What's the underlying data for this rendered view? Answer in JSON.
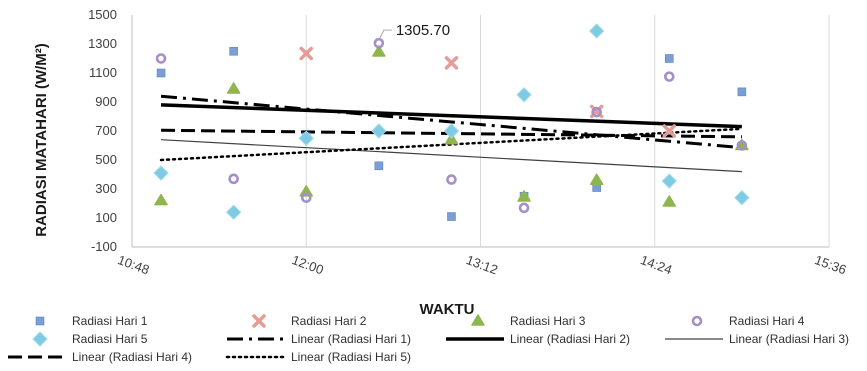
{
  "chart_data": {
    "type": "scatter",
    "xlabel": "WAKTU",
    "ylabel": "RADIASI MATAHARI (W/M²)",
    "ylim": [
      -100,
      1500
    ],
    "yticks": [
      -100,
      100,
      300,
      500,
      700,
      900,
      1100,
      1300,
      1500
    ],
    "xlim_minutes": [
      648,
      936
    ],
    "xticks": [
      {
        "minutes": 648,
        "label": "10:48"
      },
      {
        "minutes": 720,
        "label": "12:00"
      },
      {
        "minutes": 792,
        "label": "13:12"
      },
      {
        "minutes": 864,
        "label": "14:24"
      },
      {
        "minutes": 936,
        "label": "15:36"
      }
    ],
    "grid": "vertical",
    "legend_position": "bottom",
    "annotation": {
      "text": "1305.70",
      "series": "Radiasi Hari 4",
      "x_minutes": 750,
      "y": 1305.7
    },
    "series": [
      {
        "name": "Radiasi Hari 1",
        "marker": "square",
        "color": "#7b9fd4",
        "x_minutes": [
          660,
          690,
          720,
          750,
          780,
          810,
          840,
          870,
          900
        ],
        "values": [
          1100,
          1250,
          660,
          460,
          110,
          250,
          310,
          1200,
          970
        ]
      },
      {
        "name": "Radiasi Hari 2",
        "marker": "x",
        "color": "#e49c96",
        "x_minutes": [
          720,
          780,
          840,
          870
        ],
        "values": [
          1235,
          1170,
          835,
          700
        ]
      },
      {
        "name": "Radiasi Hari 3",
        "marker": "triangle",
        "color": "#8fb64e",
        "x_minutes": [
          660,
          690,
          720,
          750,
          780,
          810,
          840,
          870,
          900
        ],
        "values": [
          220,
          990,
          280,
          1245,
          640,
          245,
          360,
          210,
          600
        ]
      },
      {
        "name": "Radiasi Hari 4",
        "marker": "circle",
        "color": "#a48fc8",
        "x_minutes": [
          660,
          690,
          720,
          750,
          780,
          810,
          840,
          870,
          900
        ],
        "values": [
          1200,
          370,
          240,
          1305.7,
          365,
          170,
          830,
          1075,
          600
        ]
      },
      {
        "name": "Radiasi Hari 5",
        "marker": "diamond",
        "color": "#7ecbe3",
        "x_minutes": [
          660,
          690,
          720,
          750,
          780,
          810,
          840,
          870,
          900
        ],
        "values": [
          410,
          140,
          650,
          700,
          700,
          950,
          1390,
          355,
          240
        ]
      }
    ],
    "trendlines": [
      {
        "name": "Linear (Radiasi Hari 1)",
        "style": "dash-dot",
        "x_minutes": [
          660,
          900
        ],
        "values": [
          940,
          585
        ]
      },
      {
        "name": "Linear (Radiasi Hari 2)",
        "style": "solid-thick",
        "x_minutes": [
          660,
          900
        ],
        "values": [
          880,
          730
        ]
      },
      {
        "name": "Linear (Radiasi Hari 3)",
        "style": "solid-thin",
        "x_minutes": [
          660,
          900
        ],
        "values": [
          640,
          420
        ]
      },
      {
        "name": "Linear (Radiasi Hari 4)",
        "style": "dashed",
        "x_minutes": [
          660,
          900
        ],
        "values": [
          705,
          660
        ]
      },
      {
        "name": "Linear (Radiasi Hari 5)",
        "style": "dotted",
        "x_minutes": [
          660,
          900
        ],
        "values": [
          500,
          715
        ]
      }
    ]
  }
}
